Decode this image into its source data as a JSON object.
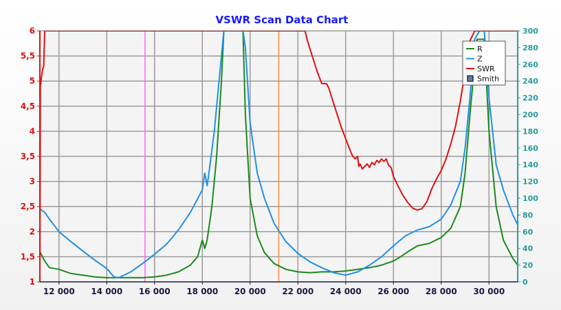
{
  "chart_data": {
    "type": "line",
    "title": "VSWR Scan Data Chart",
    "xlabel": "",
    "ylabel_left": "",
    "ylabel_right": "",
    "xlim": [
      11200,
      31200
    ],
    "ylim_left": [
      1,
      6
    ],
    "ylim_right": [
      0,
      300
    ],
    "x_ticks": [
      "12 000",
      "14 000",
      "16 000",
      "18 000",
      "20 000",
      "22 000",
      "24 000",
      "26 000",
      "28 000",
      "30 000"
    ],
    "x_tick_values": [
      12000,
      14000,
      16000,
      18000,
      20000,
      22000,
      24000,
      26000,
      28000,
      30000
    ],
    "y_left_ticks": [
      "1",
      "1,5",
      "2",
      "2,5",
      "3",
      "3,5",
      "4",
      "4,5",
      "5",
      "5,5",
      "6"
    ],
    "y_left_tick_values": [
      1,
      1.5,
      2,
      2.5,
      3,
      3.5,
      4,
      4.5,
      5,
      5.5,
      6
    ],
    "y_right_ticks": [
      "0",
      "20",
      "40",
      "60",
      "80",
      "100",
      "120",
      "140",
      "160",
      "180",
      "200",
      "220",
      "240",
      "260",
      "280",
      "300"
    ],
    "y_right_tick_values": [
      0,
      20,
      40,
      60,
      80,
      100,
      120,
      140,
      160,
      180,
      200,
      220,
      240,
      260,
      280,
      300
    ],
    "grid": true,
    "legend_position": "top-right",
    "legend": [
      {
        "label": "R",
        "color": "#1a8a1a",
        "kind": "line"
      },
      {
        "label": "Z",
        "color": "#1e8fe6",
        "kind": "line"
      },
      {
        "label": "SWR",
        "color": "#e01010",
        "kind": "line"
      },
      {
        "label": "Smith",
        "color": "#1c2a4a",
        "kind": "box"
      }
    ],
    "markers": [
      {
        "x": 15600,
        "color": "#ff66ff"
      },
      {
        "x": 21200,
        "color": "#ff8c3a"
      }
    ],
    "series": [
      {
        "name": "R",
        "axis": "right",
        "color": "#1a8a1a",
        "x": [
          11200,
          11400,
          11600,
          12000,
          12500,
          13000,
          13500,
          14000,
          14500,
          15000,
          15500,
          16000,
          16500,
          17000,
          17500,
          17800,
          18000,
          18100,
          18200,
          18400,
          18600,
          18800,
          18900,
          19000,
          19200,
          19500,
          19700,
          19800,
          20000,
          20300,
          20600,
          21000,
          21500,
          22000,
          22500,
          23000,
          23500,
          24000,
          24500,
          25000,
          25500,
          26000,
          26300,
          26600,
          27000,
          27500,
          28000,
          28400,
          28800,
          29000,
          29200,
          29500,
          29800,
          30000,
          30300,
          30600,
          31000,
          31200
        ],
        "values": [
          36,
          25,
          17,
          15,
          10,
          8,
          6,
          5,
          5,
          5,
          5,
          6,
          8,
          12,
          20,
          30,
          50,
          40,
          50,
          90,
          150,
          240,
          300,
          300,
          300,
          300,
          300,
          200,
          100,
          55,
          35,
          22,
          15,
          12,
          11,
          12,
          12,
          13,
          15,
          17,
          20,
          25,
          30,
          36,
          43,
          46,
          53,
          64,
          90,
          130,
          200,
          290,
          290,
          180,
          90,
          50,
          28,
          20
        ]
      },
      {
        "name": "Z",
        "axis": "right",
        "color": "#1e8fe6",
        "x": [
          11200,
          11400,
          11600,
          12000,
          12500,
          13000,
          13500,
          14000,
          14300,
          14500,
          15000,
          15500,
          16000,
          16500,
          17000,
          17500,
          18000,
          18100,
          18200,
          18300,
          18500,
          18700,
          18900,
          19000,
          19200,
          19500,
          19700,
          19800,
          20000,
          20300,
          20600,
          21000,
          21500,
          22000,
          22500,
          23000,
          23500,
          24000,
          24500,
          25000,
          25500,
          26000,
          26500,
          27000,
          27500,
          28000,
          28400,
          28800,
          29000,
          29200,
          29400,
          29600,
          29800,
          30000,
          30300,
          30600,
          31000,
          31200
        ],
        "values": [
          87,
          83,
          75,
          60,
          48,
          37,
          26,
          16,
          6,
          5,
          12,
          22,
          33,
          45,
          62,
          83,
          110,
          130,
          115,
          135,
          180,
          240,
          300,
          300,
          300,
          300,
          300,
          280,
          190,
          130,
          100,
          70,
          48,
          34,
          24,
          17,
          11,
          8,
          12,
          20,
          30,
          43,
          55,
          62,
          66,
          75,
          92,
          120,
          160,
          220,
          290,
          300,
          300,
          220,
          140,
          110,
          80,
          68
        ]
      },
      {
        "name": "SWR",
        "axis": "left",
        "color": "#e01010",
        "x": [
          11200,
          11220,
          11300,
          11360,
          11400,
          11500,
          22300,
          22400,
          22600,
          22800,
          23000,
          23100,
          23200,
          23300,
          23400,
          23600,
          23800,
          24000,
          24200,
          24300,
          24400,
          24500,
          24550,
          24600,
          24700,
          24800,
          24900,
          25000,
          25100,
          25200,
          25300,
          25400,
          25500,
          25600,
          25700,
          25800,
          25900,
          26000,
          26200,
          26400,
          26600,
          26800,
          27000,
          27200,
          27400,
          27600,
          27800,
          28000,
          28200,
          28400,
          28600,
          28800,
          29000,
          29200,
          29400,
          29600,
          29800,
          31200
        ],
        "values": [
          1,
          4.9,
          5.2,
          5.3,
          6,
          6,
          6,
          5.8,
          5.5,
          5.2,
          4.95,
          4.95,
          4.95,
          4.85,
          4.7,
          4.4,
          4.1,
          3.85,
          3.6,
          3.5,
          3.45,
          3.5,
          3.3,
          3.35,
          3.25,
          3.3,
          3.35,
          3.28,
          3.38,
          3.33,
          3.42,
          3.38,
          3.45,
          3.4,
          3.45,
          3.32,
          3.28,
          3.1,
          2.9,
          2.72,
          2.58,
          2.47,
          2.43,
          2.46,
          2.6,
          2.85,
          3.05,
          3.22,
          3.45,
          3.75,
          4.1,
          4.6,
          5.2,
          5.8,
          6,
          6,
          6,
          6
        ]
      }
    ]
  }
}
